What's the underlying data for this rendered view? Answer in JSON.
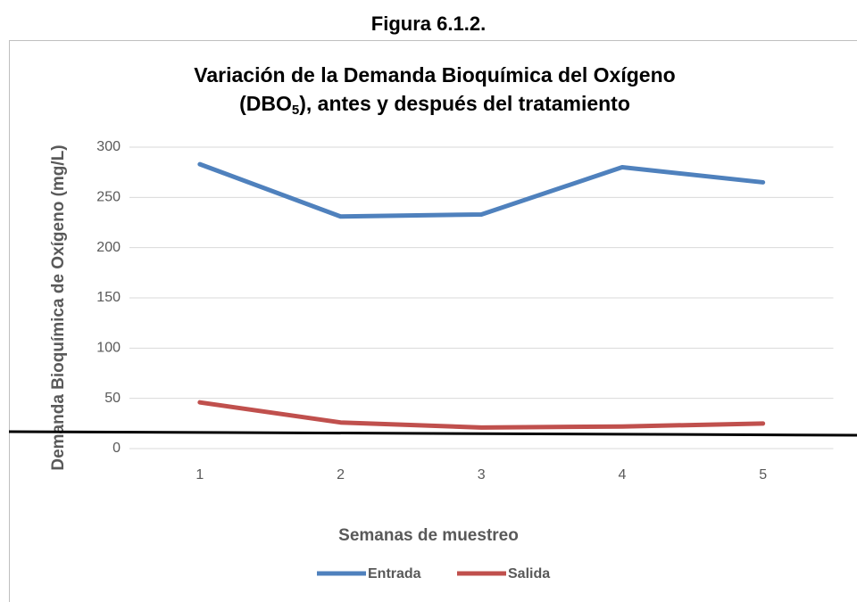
{
  "caption": "Figura 6.1.2.",
  "chart_data": {
    "type": "line",
    "title_line1": "Variación de la Demanda Bioquímica del Oxígeno",
    "title_line2": [
      "(DBO",
      "5",
      "), antes y después del tratamiento"
    ],
    "x_label": "Semanas de muestreo",
    "y_label": "Demanda Bioquímica de Oxígeno (mg/L)",
    "categories": [
      "1",
      "2",
      "3",
      "4",
      "5"
    ],
    "series": [
      {
        "name": "Entrada",
        "color": "#4f81bd",
        "values": [
          283,
          231,
          233,
          280,
          265
        ]
      },
      {
        "name": "Salida",
        "color": "#c0504d",
        "values": [
          46,
          26,
          21,
          22,
          25
        ]
      }
    ],
    "ylim": [
      0,
      300
    ],
    "yticks": [
      0,
      50,
      100,
      150,
      200,
      250,
      300
    ],
    "grid": true,
    "legend": "bottom"
  }
}
